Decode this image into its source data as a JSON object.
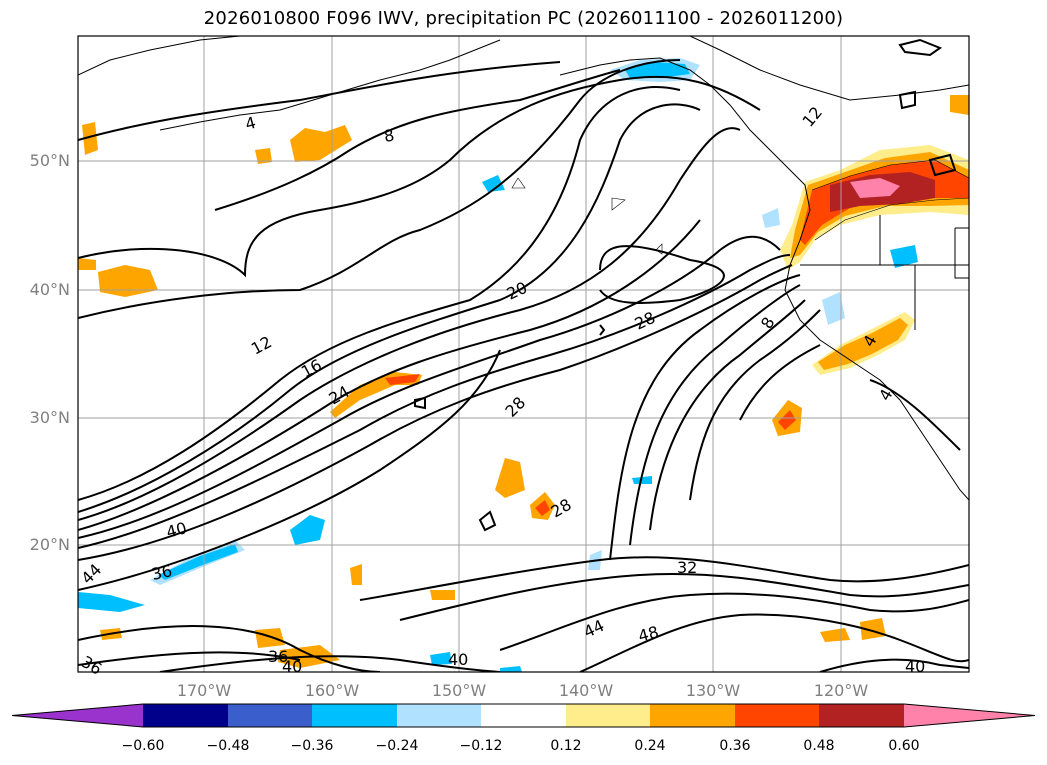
{
  "title": "2026010800 F096 IWV, precipitation PC (2026011100 - 2026011200)",
  "lat_labels": [
    {
      "text": "50°N",
      "value": 50
    },
    {
      "text": "40°N",
      "value": 40
    },
    {
      "text": "30°N",
      "value": 30
    },
    {
      "text": "20°N",
      "value": 20
    }
  ],
  "lon_labels": [
    {
      "text": "170°W",
      "value": -170
    },
    {
      "text": "160°W",
      "value": -160
    },
    {
      "text": "150°W",
      "value": -150
    },
    {
      "text": "140°W",
      "value": -140
    },
    {
      "text": "130°W",
      "value": -130
    },
    {
      "text": "120°W",
      "value": -120
    }
  ],
  "contour_labels": [
    {
      "text": "4"
    },
    {
      "text": "8"
    },
    {
      "text": "12"
    },
    {
      "text": "16"
    },
    {
      "text": "20"
    },
    {
      "text": "24"
    },
    {
      "text": "28"
    },
    {
      "text": "28"
    },
    {
      "text": "28"
    },
    {
      "text": "32"
    },
    {
      "text": "36"
    },
    {
      "text": "36"
    },
    {
      "text": "36"
    },
    {
      "text": "40"
    },
    {
      "text": "40"
    },
    {
      "text": "40"
    },
    {
      "text": "40"
    },
    {
      "text": "44"
    },
    {
      "text": "44"
    },
    {
      "text": "48"
    },
    {
      "text": "8"
    },
    {
      "text": "12"
    },
    {
      "text": "4"
    },
    {
      "text": "4"
    }
  ],
  "colorbar": {
    "colors": [
      "#9a32cd",
      "#00008b",
      "#3a5fcd",
      "#00bfff",
      "#b0e2ff",
      "#ffffff",
      "#ffec8b",
      "#ffa500",
      "#ff4500",
      "#b22222",
      "#ff82ab"
    ],
    "tick_labels": [
      "−0.60",
      "−0.48",
      "−0.36",
      "−0.24",
      "−0.12",
      "0.12",
      "0.24",
      "0.36",
      "0.48",
      "0.60"
    ]
  },
  "legend_colors": {
    "contour": "#000000",
    "grid": "#a0a0a0",
    "coast": "#000000"
  }
}
